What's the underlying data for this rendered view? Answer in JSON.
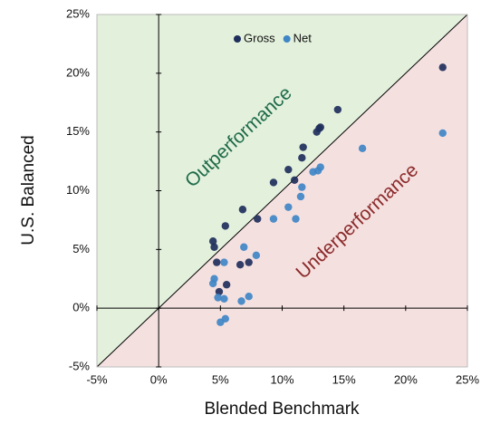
{
  "chart_data": {
    "type": "scatter",
    "xlabel": "Blended Benchmark",
    "ylabel": "U.S. Balanced",
    "annotations": [
      "Outperformance",
      "Underperformance"
    ],
    "xlim": [
      -5,
      25
    ],
    "ylim": [
      -5,
      25
    ],
    "xticks": [
      {
        "value": -5,
        "label": "-5%"
      },
      {
        "value": 0,
        "label": "0%"
      },
      {
        "value": 5,
        "label": "5%"
      },
      {
        "value": 10,
        "label": "10%"
      },
      {
        "value": 15,
        "label": "15%"
      },
      {
        "value": 20,
        "label": "20%"
      },
      {
        "value": 25,
        "label": "25%"
      }
    ],
    "yticks": [
      {
        "value": -5,
        "label": "-5%"
      },
      {
        "value": 0,
        "label": "0%"
      },
      {
        "value": 5,
        "label": "5%"
      },
      {
        "value": 10,
        "label": "10%"
      },
      {
        "value": 15,
        "label": "15%"
      },
      {
        "value": 20,
        "label": "20%"
      },
      {
        "value": 25,
        "label": "25%"
      }
    ],
    "legend": "top",
    "series": [
      {
        "name": "Gross",
        "color": "#1f2f5c",
        "x": [
          23.0,
          14.5,
          13.1,
          12.8,
          13.0,
          11.7,
          11.6,
          10.5,
          9.3,
          11.0,
          6.8,
          5.4,
          4.4,
          4.5,
          4.7,
          4.9,
          5.5,
          6.6,
          7.3,
          8.0
        ],
        "values": [
          20.5,
          16.9,
          15.4,
          15.0,
          15.3,
          13.7,
          12.8,
          11.8,
          10.7,
          10.9,
          8.4,
          7.0,
          5.7,
          5.2,
          3.9,
          1.4,
          2.0,
          3.7,
          3.9,
          7.6
        ]
      },
      {
        "name": "Net",
        "color": "#3f86c6",
        "x": [
          23.0,
          16.5,
          13.1,
          12.9,
          12.5,
          11.6,
          11.5,
          10.5,
          11.1,
          9.3,
          6.9,
          7.9,
          4.5,
          4.4,
          4.8,
          5.3,
          6.7,
          7.3,
          5.0,
          5.4,
          5.3
        ],
        "values": [
          14.9,
          13.6,
          12.0,
          11.7,
          11.6,
          10.3,
          9.5,
          8.6,
          7.6,
          7.6,
          5.2,
          4.5,
          2.5,
          2.1,
          0.9,
          0.8,
          0.6,
          1.0,
          -1.2,
          -0.9,
          3.9
        ]
      }
    ]
  }
}
